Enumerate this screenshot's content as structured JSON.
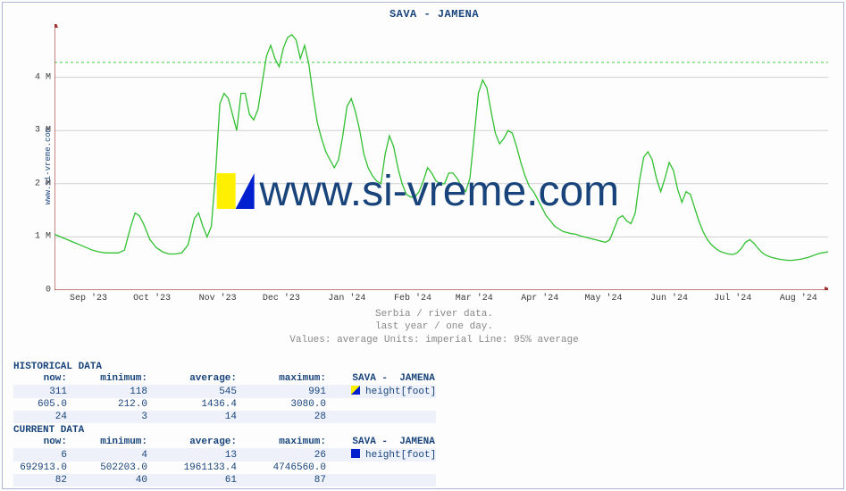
{
  "chart": {
    "title": "SAVA -  JAMENA",
    "ylabel": "www.si-vreme.com",
    "watermark": "www.si-vreme.com",
    "caption_line1": "Serbia / river data.",
    "caption_line2": "last year / one day.",
    "caption_line3": "Values: average  Units: imperial  Line: 95% average",
    "background_color": "#fdfdfd",
    "frame_color": "#aeb5d6",
    "grid_color": "#d0d0d0",
    "axis_color": "#a03030",
    "threshold_color": "#40d040",
    "line_color": "#30c030",
    "title_color": "#18447b",
    "tick_color": "#3a3a3a",
    "xlim": [
      0,
      365
    ],
    "ylim": [
      0,
      5
    ],
    "threshold_y": 4.28,
    "yticks": [
      {
        "v": 0,
        "label": "0"
      },
      {
        "v": 1,
        "label": "1 M"
      },
      {
        "v": 2,
        "label": "2 M"
      },
      {
        "v": 3,
        "label": "3 M"
      },
      {
        "v": 4,
        "label": "4 M"
      }
    ],
    "xticks": [
      {
        "v": 16,
        "label": "Sep '23"
      },
      {
        "v": 46,
        "label": "Oct '23"
      },
      {
        "v": 77,
        "label": "Nov '23"
      },
      {
        "v": 107,
        "label": "Dec '23"
      },
      {
        "v": 138,
        "label": "Jan '24"
      },
      {
        "v": 169,
        "label": "Feb '24"
      },
      {
        "v": 198,
        "label": "Mar '24"
      },
      {
        "v": 229,
        "label": "Apr '24"
      },
      {
        "v": 259,
        "label": "May '24"
      },
      {
        "v": 290,
        "label": "Jun '24"
      },
      {
        "v": 320,
        "label": "Jul '24"
      },
      {
        "v": 351,
        "label": "Aug '24"
      }
    ],
    "series": [
      [
        0,
        1.05
      ],
      [
        3,
        1.0
      ],
      [
        6,
        0.95
      ],
      [
        9,
        0.9
      ],
      [
        12,
        0.85
      ],
      [
        15,
        0.8
      ],
      [
        18,
        0.75
      ],
      [
        21,
        0.72
      ],
      [
        24,
        0.7
      ],
      [
        27,
        0.7
      ],
      [
        30,
        0.7
      ],
      [
        33,
        0.75
      ],
      [
        36,
        1.2
      ],
      [
        38,
        1.45
      ],
      [
        40,
        1.4
      ],
      [
        42,
        1.25
      ],
      [
        45,
        0.95
      ],
      [
        48,
        0.8
      ],
      [
        51,
        0.72
      ],
      [
        54,
        0.68
      ],
      [
        57,
        0.68
      ],
      [
        60,
        0.7
      ],
      [
        63,
        0.85
      ],
      [
        66,
        1.35
      ],
      [
        68,
        1.45
      ],
      [
        70,
        1.2
      ],
      [
        72,
        1.0
      ],
      [
        74,
        1.2
      ],
      [
        76,
        2.2
      ],
      [
        78,
        3.5
      ],
      [
        80,
        3.7
      ],
      [
        82,
        3.6
      ],
      [
        84,
        3.3
      ],
      [
        86,
        3.0
      ],
      [
        88,
        3.7
      ],
      [
        90,
        3.7
      ],
      [
        92,
        3.3
      ],
      [
        94,
        3.2
      ],
      [
        96,
        3.4
      ],
      [
        98,
        3.9
      ],
      [
        100,
        4.4
      ],
      [
        102,
        4.6
      ],
      [
        104,
        4.35
      ],
      [
        106,
        4.2
      ],
      [
        108,
        4.55
      ],
      [
        110,
        4.75
      ],
      [
        112,
        4.8
      ],
      [
        114,
        4.7
      ],
      [
        116,
        4.35
      ],
      [
        118,
        4.6
      ],
      [
        120,
        4.25
      ],
      [
        122,
        3.65
      ],
      [
        124,
        3.15
      ],
      [
        126,
        2.85
      ],
      [
        128,
        2.6
      ],
      [
        130,
        2.45
      ],
      [
        132,
        2.3
      ],
      [
        134,
        2.45
      ],
      [
        136,
        2.9
      ],
      [
        138,
        3.45
      ],
      [
        140,
        3.6
      ],
      [
        142,
        3.35
      ],
      [
        144,
        3.0
      ],
      [
        146,
        2.55
      ],
      [
        148,
        2.3
      ],
      [
        150,
        2.15
      ],
      [
        152,
        2.05
      ],
      [
        154,
        2.0
      ],
      [
        156,
        2.55
      ],
      [
        158,
        2.9
      ],
      [
        160,
        2.7
      ],
      [
        162,
        2.3
      ],
      [
        164,
        2.0
      ],
      [
        166,
        1.8
      ],
      [
        168,
        1.75
      ],
      [
        170,
        1.75
      ],
      [
        172,
        1.85
      ],
      [
        174,
        2.05
      ],
      [
        176,
        2.3
      ],
      [
        178,
        2.2
      ],
      [
        180,
        2.05
      ],
      [
        182,
        2.0
      ],
      [
        184,
        2.0
      ],
      [
        186,
        2.2
      ],
      [
        188,
        2.2
      ],
      [
        190,
        2.1
      ],
      [
        192,
        1.95
      ],
      [
        194,
        1.85
      ],
      [
        196,
        2.1
      ],
      [
        198,
        2.9
      ],
      [
        200,
        3.7
      ],
      [
        202,
        3.95
      ],
      [
        204,
        3.8
      ],
      [
        206,
        3.35
      ],
      [
        208,
        2.95
      ],
      [
        210,
        2.75
      ],
      [
        212,
        2.85
      ],
      [
        214,
        3.0
      ],
      [
        216,
        2.95
      ],
      [
        218,
        2.7
      ],
      [
        220,
        2.4
      ],
      [
        222,
        2.15
      ],
      [
        224,
        1.95
      ],
      [
        226,
        1.85
      ],
      [
        228,
        1.7
      ],
      [
        230,
        1.55
      ],
      [
        232,
        1.4
      ],
      [
        234,
        1.3
      ],
      [
        236,
        1.2
      ],
      [
        238,
        1.15
      ],
      [
        240,
        1.1
      ],
      [
        242,
        1.08
      ],
      [
        244,
        1.06
      ],
      [
        246,
        1.05
      ],
      [
        248,
        1.02
      ],
      [
        250,
        1.0
      ],
      [
        252,
        0.98
      ],
      [
        254,
        0.96
      ],
      [
        256,
        0.94
      ],
      [
        258,
        0.92
      ],
      [
        260,
        0.9
      ],
      [
        262,
        0.95
      ],
      [
        264,
        1.15
      ],
      [
        266,
        1.35
      ],
      [
        268,
        1.4
      ],
      [
        270,
        1.3
      ],
      [
        272,
        1.25
      ],
      [
        274,
        1.45
      ],
      [
        276,
        2.05
      ],
      [
        278,
        2.5
      ],
      [
        280,
        2.6
      ],
      [
        282,
        2.45
      ],
      [
        284,
        2.1
      ],
      [
        286,
        1.85
      ],
      [
        288,
        2.1
      ],
      [
        290,
        2.4
      ],
      [
        292,
        2.25
      ],
      [
        294,
        1.9
      ],
      [
        296,
        1.65
      ],
      [
        298,
        1.85
      ],
      [
        300,
        1.8
      ],
      [
        302,
        1.55
      ],
      [
        304,
        1.3
      ],
      [
        306,
        1.1
      ],
      [
        308,
        0.95
      ],
      [
        310,
        0.85
      ],
      [
        312,
        0.78
      ],
      [
        314,
        0.73
      ],
      [
        316,
        0.7
      ],
      [
        318,
        0.68
      ],
      [
        320,
        0.67
      ],
      [
        322,
        0.7
      ],
      [
        324,
        0.78
      ],
      [
        326,
        0.9
      ],
      [
        328,
        0.95
      ],
      [
        330,
        0.88
      ],
      [
        332,
        0.78
      ],
      [
        334,
        0.7
      ],
      [
        336,
        0.65
      ],
      [
        338,
        0.62
      ],
      [
        340,
        0.6
      ],
      [
        342,
        0.58
      ],
      [
        344,
        0.57
      ],
      [
        346,
        0.56
      ],
      [
        348,
        0.56
      ],
      [
        350,
        0.57
      ],
      [
        352,
        0.58
      ],
      [
        354,
        0.6
      ],
      [
        356,
        0.62
      ],
      [
        358,
        0.65
      ],
      [
        360,
        0.68
      ],
      [
        362,
        0.7
      ],
      [
        365,
        0.72
      ]
    ]
  },
  "tables": {
    "historical_title": "HISTORICAL DATA",
    "current_title": "CURRENT DATA",
    "headers": {
      "now": "now:",
      "min": "minimum:",
      "avg": "average:",
      "max": "maximum:"
    },
    "series_label": "SAVA -  JAMENA",
    "unit_label": "height[foot]",
    "historical": {
      "r1": {
        "now": "311",
        "min": "118",
        "avg": "545",
        "max": "991"
      },
      "r2": {
        "now": "605.0",
        "min": "212.0",
        "avg": "1436.4",
        "max": "3080.0"
      },
      "r3": {
        "now": "24",
        "min": "3",
        "avg": "14",
        "max": "28"
      }
    },
    "current": {
      "r1": {
        "now": "6",
        "min": "4",
        "avg": "13",
        "max": "26"
      },
      "r2": {
        "now": "692913.0",
        "min": "502203.0",
        "avg": "1961133.4",
        "max": "4746560.0"
      },
      "r3": {
        "now": "82",
        "min": "40",
        "avg": "61",
        "max": "87"
      }
    }
  }
}
